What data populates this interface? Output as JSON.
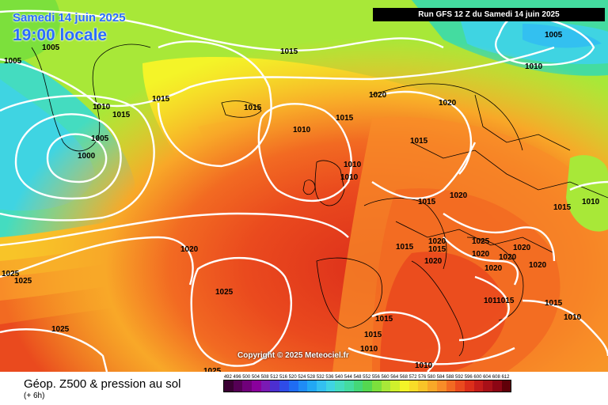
{
  "header": {
    "date": "Samedi 14 juin 2025",
    "time": "19:00 locale",
    "run": "Run GFS 12 Z du Samedi 14 juin 2025"
  },
  "copyright": "Copyright © 2025 Meteociel.fr",
  "footer": {
    "title": "Géop. Z500 & pression au sol",
    "subtitle": "(+ 6h)"
  },
  "legend": {
    "values": [
      "492",
      "496",
      "500",
      "504",
      "508",
      "512",
      "516",
      "520",
      "524",
      "528",
      "532",
      "536",
      "540",
      "544",
      "548",
      "552",
      "556",
      "560",
      "564",
      "568",
      "572",
      "576",
      "580",
      "584",
      "588",
      "592",
      "596",
      "600",
      "604",
      "608",
      "612"
    ],
    "colors": [
      "#3a0033",
      "#550055",
      "#70007a",
      "#8a009c",
      "#7a1ab4",
      "#4c2fd0",
      "#2f4ce8",
      "#1f6cf2",
      "#1f8cf6",
      "#22a8f4",
      "#33c0f0",
      "#3fd4e2",
      "#44dcc0",
      "#44dca0",
      "#44d878",
      "#54d850",
      "#7ce03c",
      "#a8e838",
      "#cff02c",
      "#f4f428",
      "#f8dc28",
      "#f8c428",
      "#f8a828",
      "#f88c28",
      "#f26a22",
      "#ea4a1e",
      "#dc2e1a",
      "#c41c1a",
      "#a81018",
      "#8c0614",
      "#600008"
    ]
  },
  "isobar_labels": [
    "1005",
    "1005",
    "1010",
    "1015",
    "1005",
    "1000",
    "1015",
    "1015",
    "1010",
    "1015",
    "1020",
    "1020",
    "1010",
    "1015",
    "1010",
    "1010",
    "1015",
    "1020",
    "1015",
    "1015",
    "1020",
    "1020",
    "1015",
    "1025",
    "1020",
    "1020",
    "1020",
    "1020",
    "1020",
    "1015",
    "1010",
    "1020",
    "1025",
    "1025",
    "1025",
    "1025",
    "1011015",
    "1015",
    "1010",
    "1015",
    "1015",
    "1010",
    "1025",
    "1005",
    "1010"
  ]
}
